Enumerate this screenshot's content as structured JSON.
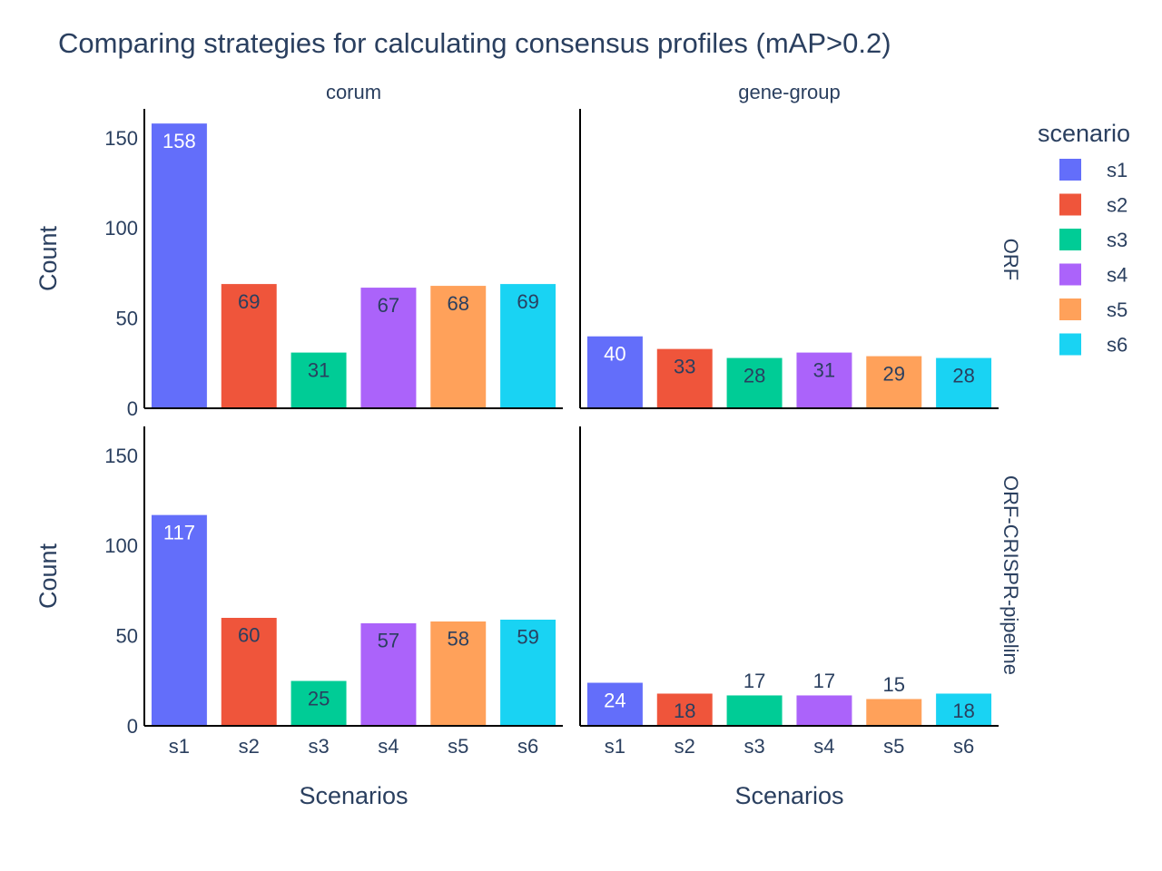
{
  "chart_data": {
    "type": "bar",
    "title": "Comparing strategies for calculating consensus profiles (mAP>0.2)",
    "categories": [
      "s1",
      "s2",
      "s3",
      "s4",
      "s5",
      "s6"
    ],
    "xlabel": "Scenarios",
    "ylabel": "Count",
    "ylim": [
      0,
      166
    ],
    "yticks": [
      0,
      50,
      100,
      150
    ],
    "legend": {
      "title": "scenario",
      "placement": "top-right",
      "entries": [
        "s1",
        "s2",
        "s3",
        "s4",
        "s5",
        "s6"
      ]
    },
    "colors": {
      "s1": "#636efa",
      "s2": "#ef553b",
      "s3": "#00cc96",
      "s4": "#ab63fa",
      "s5": "#ffa15a",
      "s6": "#19d3f3"
    },
    "column_facets": [
      "corum",
      "gene-group"
    ],
    "row_facets": [
      "ORF",
      "ORF-CRISPR-pipeline"
    ],
    "panels": [
      {
        "row": "ORF",
        "col": "corum",
        "values": [
          158,
          69,
          31,
          67,
          68,
          69
        ]
      },
      {
        "row": "ORF",
        "col": "gene-group",
        "values": [
          40,
          33,
          28,
          31,
          29,
          28
        ]
      },
      {
        "row": "ORF-CRISPR-pipeline",
        "col": "corum",
        "values": [
          117,
          60,
          25,
          57,
          58,
          59
        ]
      },
      {
        "row": "ORF-CRISPR-pipeline",
        "col": "gene-group",
        "values": [
          24,
          18,
          17,
          17,
          15,
          18
        ]
      }
    ]
  }
}
